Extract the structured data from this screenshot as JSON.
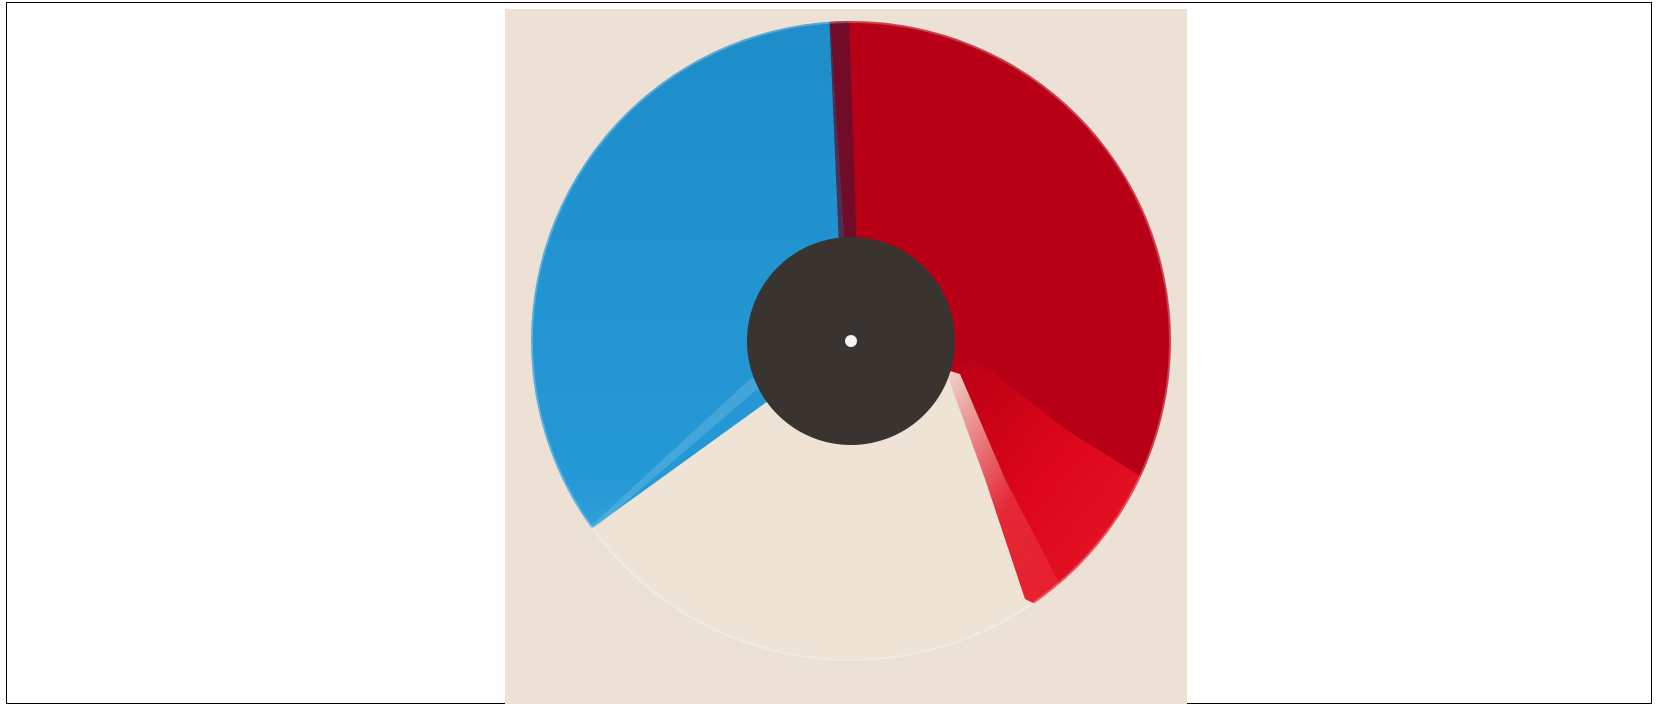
{
  "image": {
    "subject": "vinyl-record",
    "colors": {
      "background": "#ede1d6",
      "blue": "#1d8cc9",
      "red": "#b70015",
      "bright_red": "#e2071a",
      "cream": "#efe3d5",
      "label": "#3a3431",
      "spindle_hole": "#f5f5f5"
    }
  }
}
